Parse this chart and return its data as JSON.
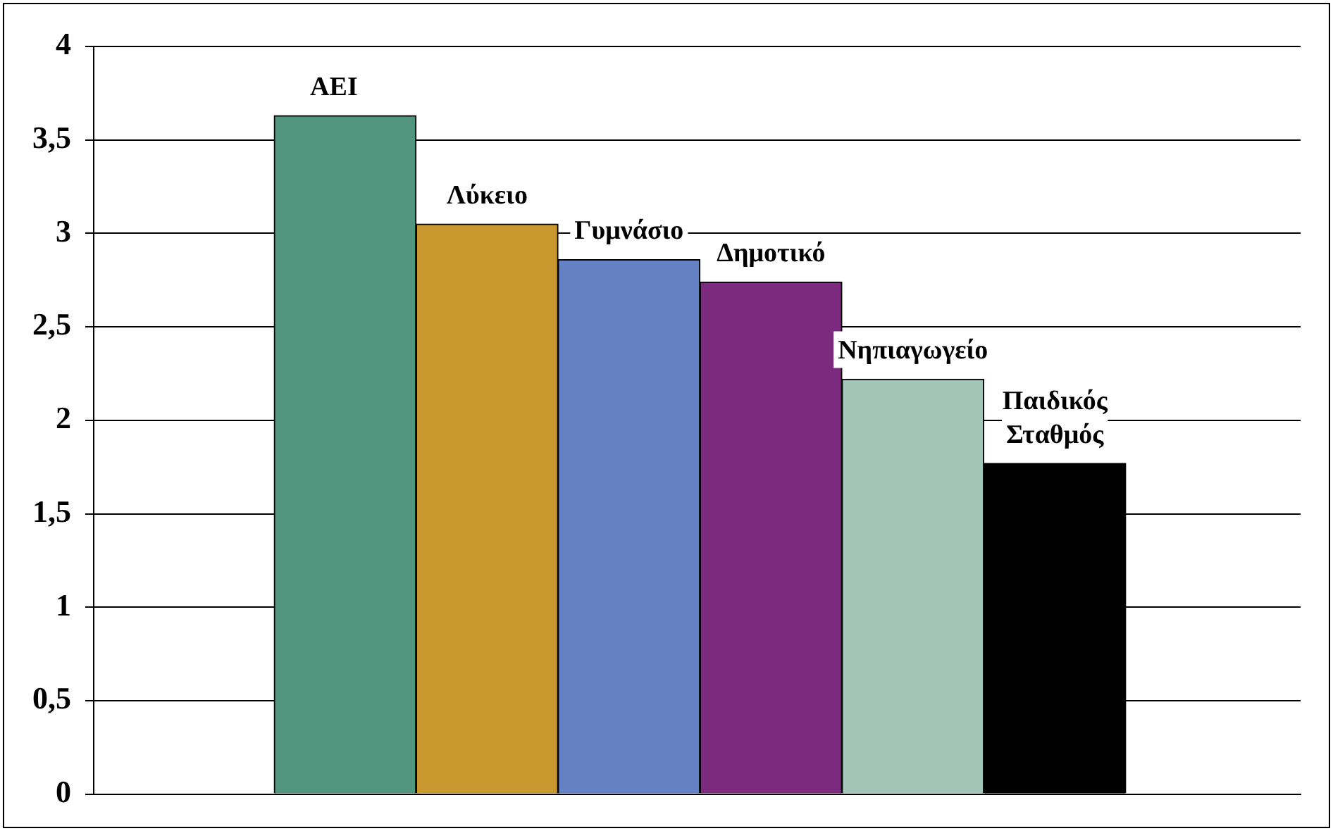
{
  "chart_data": {
    "type": "bar",
    "categories": [
      "ΑΕΙ",
      "Λύκειο",
      "Γυμνάσιο",
      "Δημοτικό",
      "Νηπιαγωγείο",
      "Παιδικός Σταθμός"
    ],
    "values": [
      3.63,
      3.05,
      2.86,
      2.74,
      2.22,
      1.77
    ],
    "colors": [
      "#52957e",
      "#c9982e",
      "#6381c3",
      "#7b2a7e",
      "#a2c5b8",
      "#000000"
    ],
    "ylim": [
      0,
      4
    ],
    "yticks": [
      0,
      {
        "value": 0.5,
        "label": "0,5"
      },
      1,
      {
        "value": 1.5,
        "label": "1,5"
      },
      2,
      {
        "value": 2.5,
        "label": "2,5"
      },
      3,
      {
        "value": 3.5,
        "label": "3,5"
      },
      4
    ],
    "grid": "y"
  }
}
